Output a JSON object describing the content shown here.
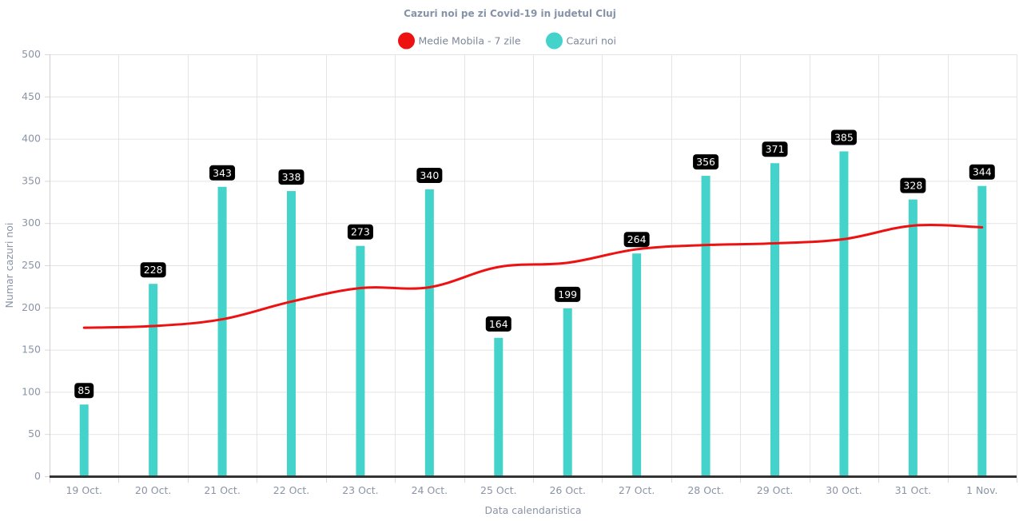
{
  "chart_data": {
    "type": "bar",
    "title": "Cazuri noi pe zi Covid-19 in judetul Cluj",
    "xlabel": "Data calendaristica",
    "ylabel": "Numar cazuri noi",
    "ylim": [
      0,
      500
    ],
    "yticks": [
      0,
      50,
      100,
      150,
      200,
      250,
      300,
      350,
      400,
      450,
      500
    ],
    "grid": true,
    "legend_position": "top-center",
    "categories": [
      "19 Oct.",
      "20 Oct.",
      "21 Oct.",
      "22 Oct.",
      "23 Oct.",
      "24 Oct.",
      "25 Oct.",
      "26 Oct.",
      "27 Oct.",
      "28 Oct.",
      "29 Oct.",
      "30 Oct.",
      "31 Oct.",
      "1 Nov."
    ],
    "series": [
      {
        "name": "Medie Mobila - 7 zile",
        "type": "line",
        "color": "#ee1111",
        "values": [
          176,
          178,
          186,
          207,
          223,
          224,
          248,
          253,
          269,
          274,
          276,
          281,
          297,
          295
        ]
      },
      {
        "name": "Cazuri noi",
        "type": "bar",
        "color": "#43d3ca",
        "values": [
          85,
          228,
          343,
          338,
          273,
          340,
          164,
          199,
          264,
          356,
          371,
          385,
          328,
          344
        ],
        "show_data_labels": true
      }
    ]
  }
}
